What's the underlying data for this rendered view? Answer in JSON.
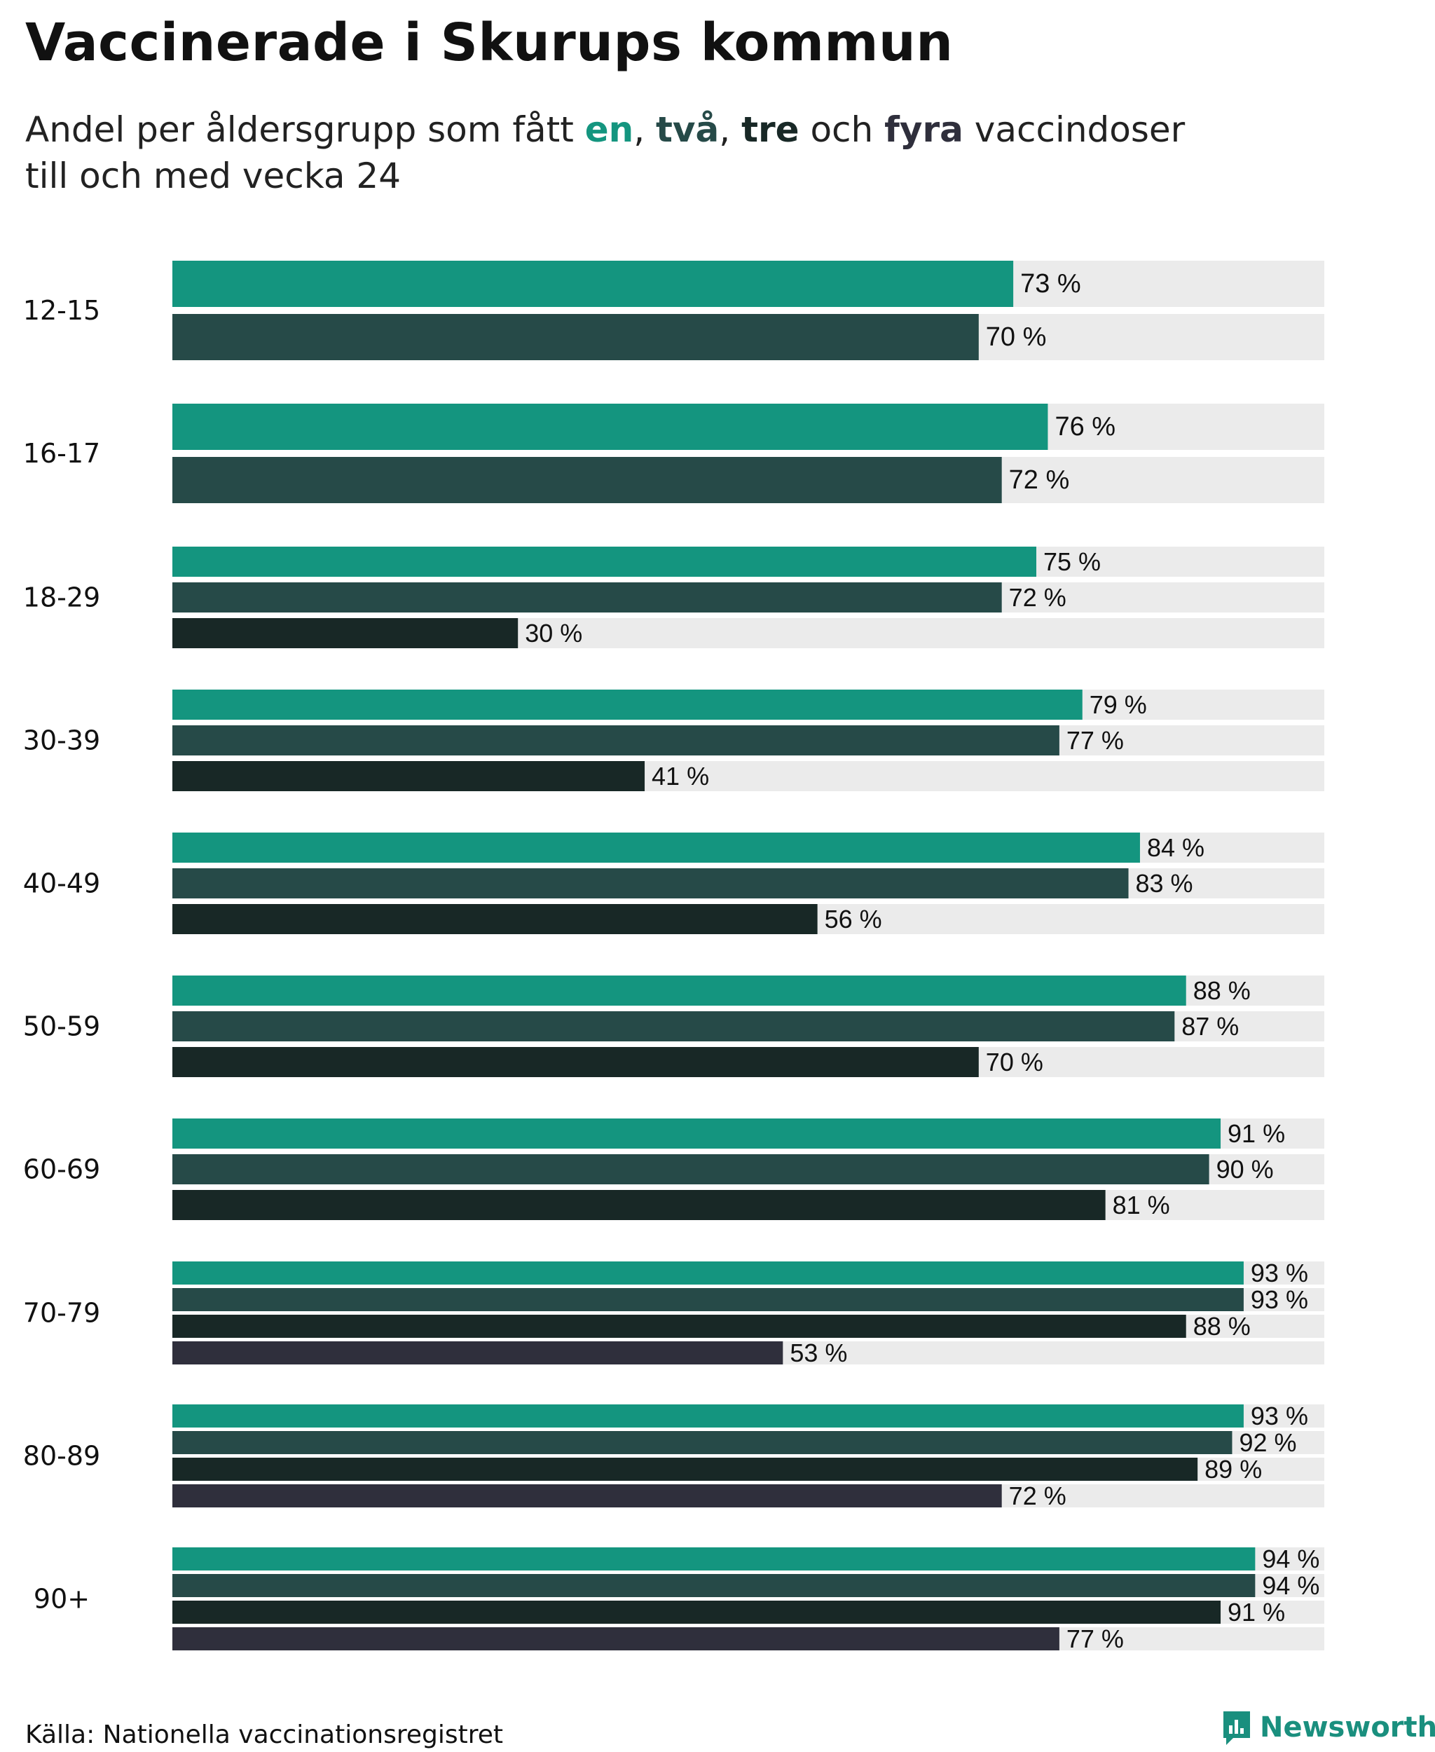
{
  "title": "Vaccinerade i Skurups kommun",
  "subtitle": {
    "prefix": "Andel per åldersgrupp som fått ",
    "dose1": "en",
    "sep1": ", ",
    "dose2": "två",
    "sep2": ", ",
    "dose3": "tre",
    "mid": " och ",
    "dose4": "fyra",
    "suffix": " vaccindoser",
    "line2": "till och med vecka 24"
  },
  "colors": {
    "dose1": "#14957f",
    "dose2": "#264a48",
    "dose3": "#182826",
    "dose4": "#2f2f3c",
    "track": "#ebebeb"
  },
  "chart_data": {
    "type": "bar",
    "orientation": "horizontal",
    "xlim": [
      0,
      100
    ],
    "value_suffix": " %",
    "categories": [
      "12-15",
      "16-17",
      "18-29",
      "30-39",
      "40-49",
      "50-59",
      "60-69",
      "70-79",
      "80-89",
      "90+"
    ],
    "series": [
      {
        "name": "en",
        "values": [
          73,
          76,
          75,
          79,
          84,
          88,
          91,
          93,
          93,
          94
        ]
      },
      {
        "name": "två",
        "values": [
          70,
          72,
          72,
          77,
          83,
          87,
          90,
          93,
          92,
          94
        ]
      },
      {
        "name": "tre",
        "values": [
          null,
          null,
          30,
          41,
          56,
          70,
          81,
          88,
          89,
          91
        ]
      },
      {
        "name": "fyra",
        "values": [
          null,
          null,
          null,
          null,
          null,
          null,
          null,
          53,
          72,
          77
        ]
      }
    ]
  },
  "source": "Källa: Nationella vaccinationsregistret",
  "brand": "Newsworthy",
  "brand_icon": "newsworthy-logo-icon"
}
